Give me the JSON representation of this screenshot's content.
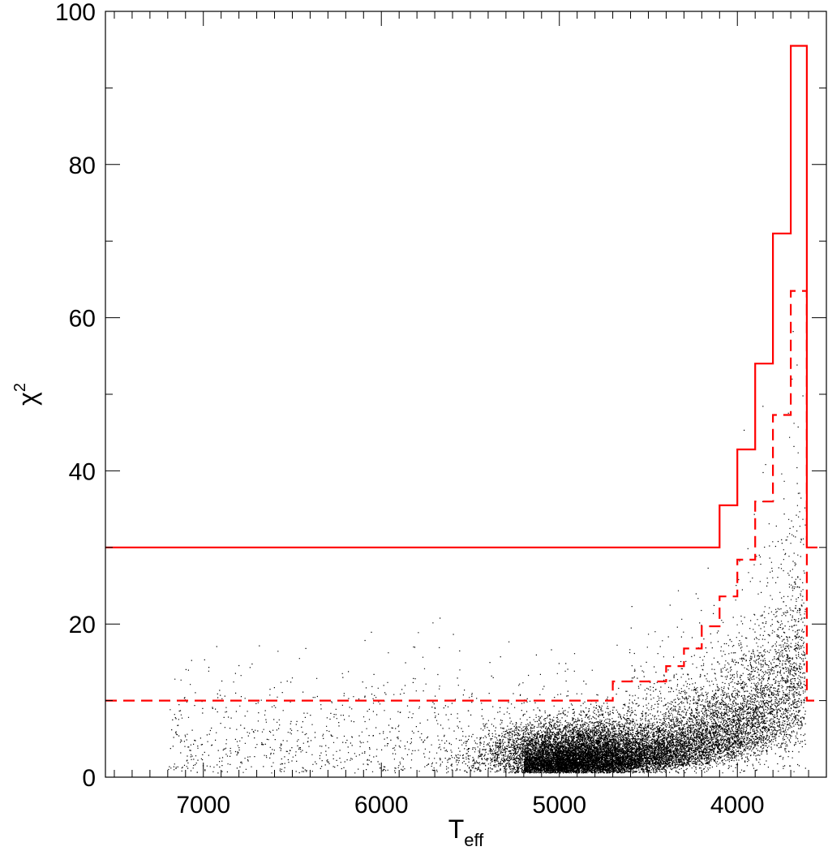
{
  "chart_data": {
    "type": "scatter",
    "title": "",
    "xlabel": "T",
    "xlabel_sub": "eff",
    "ylabel": "χ",
    "ylabel_sup": "2",
    "xlim": [
      7550,
      3500
    ],
    "ylim": [
      0,
      100
    ],
    "x_ticks": [
      7000,
      6000,
      5000,
      4000
    ],
    "y_ticks": [
      0,
      20,
      40,
      60,
      80,
      100
    ],
    "grid": false,
    "series": [
      {
        "kind": "step",
        "style": "solid",
        "color": "#ff0000",
        "points": [
          [
            7550,
            30.0
          ],
          [
            4100,
            30.0
          ],
          [
            4100,
            35.5
          ],
          [
            4000,
            35.5
          ],
          [
            4000,
            42.8
          ],
          [
            3900,
            42.8
          ],
          [
            3900,
            54.0
          ],
          [
            3800,
            54.0
          ],
          [
            3800,
            71.0
          ],
          [
            3700,
            71.0
          ],
          [
            3700,
            95.5
          ],
          [
            3610,
            95.5
          ],
          [
            3610,
            30.0
          ],
          [
            3550,
            30.0
          ]
        ]
      },
      {
        "kind": "step",
        "style": "dashed",
        "color": "#ff0000",
        "points": [
          [
            7550,
            10.0
          ],
          [
            4700,
            10.0
          ],
          [
            4700,
            12.5
          ],
          [
            4400,
            12.5
          ],
          [
            4400,
            14.5
          ],
          [
            4300,
            14.5
          ],
          [
            4300,
            16.8
          ],
          [
            4200,
            16.8
          ],
          [
            4200,
            19.7
          ],
          [
            4100,
            19.7
          ],
          [
            4100,
            23.6
          ],
          [
            4000,
            23.6
          ],
          [
            4000,
            28.4
          ],
          [
            3900,
            28.4
          ],
          [
            3900,
            36.0
          ],
          [
            3800,
            36.0
          ],
          [
            3800,
            47.3
          ],
          [
            3700,
            47.3
          ],
          [
            3700,
            63.5
          ],
          [
            3610,
            63.5
          ],
          [
            3610,
            10.0
          ],
          [
            3550,
            10.0
          ]
        ]
      }
    ],
    "scatter_clusters": [
      {
        "count": 55000,
        "cx": 4900,
        "sx": 260,
        "cy": 3.0,
        "sy": 2.2,
        "kind": "blob"
      },
      {
        "count": 60000,
        "tmin": 3620,
        "tmax": 5200,
        "kind": "ridge"
      },
      {
        "count": 1800,
        "tmin": 3620,
        "tmax": 7200,
        "ymax": 30,
        "kind": "sparse"
      }
    ],
    "scatter_color": "#000000"
  }
}
